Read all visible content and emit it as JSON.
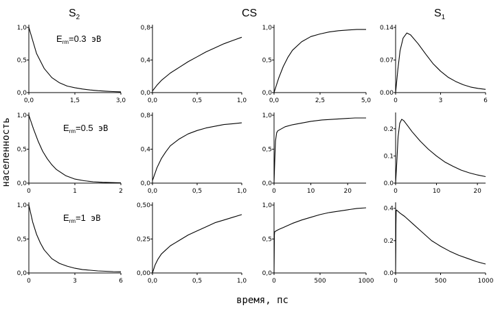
{
  "header": {
    "col_s2": "S",
    "col_s2_sub": "2",
    "col_cs": "CS",
    "col_s1": "S",
    "col_s1_sub": "1"
  },
  "row_labels": [
    {
      "prefix": "E",
      "sub": "rm",
      "value": "=0.3",
      "unit": " эВ"
    },
    {
      "prefix": "E",
      "sub": "rm",
      "value": "=0.5",
      "unit": " эВ"
    },
    {
      "prefix": "E",
      "sub": "rm",
      "value": "=1",
      "unit": " эВ"
    }
  ],
  "axes": {
    "xlabel": "время, пс",
    "ylabel": "населенность"
  },
  "chart_data": [
    {
      "type": "line",
      "row": 0,
      "col": 0,
      "xlim": [
        0,
        3.0
      ],
      "ylim": [
        0,
        1.0
      ],
      "xticks": [
        "0,0",
        "1,5",
        "3,0"
      ],
      "yticks": [
        "0,0",
        "0,5",
        "1,0"
      ],
      "x": [
        0,
        0.25,
        0.5,
        0.75,
        1.0,
        1.25,
        1.5,
        1.75,
        2.0,
        2.25,
        2.5,
        2.75,
        3.0
      ],
      "y": [
        1.0,
        0.6,
        0.37,
        0.23,
        0.15,
        0.1,
        0.075,
        0.055,
        0.04,
        0.03,
        0.022,
        0.016,
        0.012
      ]
    },
    {
      "type": "line",
      "row": 0,
      "col": 1,
      "xlim": [
        0,
        1.0
      ],
      "ylim": [
        0,
        0.8
      ],
      "xticks": [
        "0,0",
        "0,5",
        "1,0"
      ],
      "yticks": [
        "0,0",
        "0,4",
        "0,8"
      ],
      "x": [
        0,
        0.05,
        0.1,
        0.2,
        0.3,
        0.4,
        0.5,
        0.6,
        0.7,
        0.8,
        0.9,
        1.0
      ],
      "y": [
        0.02,
        0.09,
        0.15,
        0.24,
        0.31,
        0.38,
        0.44,
        0.5,
        0.55,
        0.6,
        0.64,
        0.68
      ]
    },
    {
      "type": "line",
      "row": 0,
      "col": 2,
      "xlim": [
        0,
        5.0
      ],
      "ylim": [
        0,
        1.0
      ],
      "xticks": [
        "0,0",
        "2,5",
        "5,0"
      ],
      "yticks": [
        "0,0",
        "0,5",
        "1,0"
      ],
      "x": [
        0,
        0.1,
        0.25,
        0.5,
        0.75,
        1.0,
        1.5,
        2.0,
        2.5,
        3.0,
        3.5,
        4.0,
        4.5,
        5.0
      ],
      "y": [
        0,
        0.09,
        0.22,
        0.4,
        0.54,
        0.65,
        0.78,
        0.86,
        0.9,
        0.93,
        0.95,
        0.96,
        0.97,
        0.97
      ]
    },
    {
      "type": "line",
      "row": 0,
      "col": 3,
      "xlim": [
        0,
        6
      ],
      "ylim": [
        0,
        0.14
      ],
      "xticks": [
        "0",
        "3",
        "6"
      ],
      "yticks": [
        "0.00",
        "0.07",
        "0.14"
      ],
      "x": [
        0,
        0.15,
        0.3,
        0.5,
        0.75,
        1.0,
        1.5,
        2.0,
        2.5,
        3.0,
        3.5,
        4.0,
        4.5,
        5.0,
        5.5,
        6.0
      ],
      "y": [
        0,
        0.05,
        0.09,
        0.117,
        0.128,
        0.124,
        0.105,
        0.083,
        0.062,
        0.046,
        0.033,
        0.024,
        0.017,
        0.012,
        0.009,
        0.007
      ]
    },
    {
      "type": "line",
      "row": 1,
      "col": 0,
      "xlim": [
        0,
        2
      ],
      "ylim": [
        0,
        1.0
      ],
      "xticks": [
        "0",
        "1",
        "2"
      ],
      "yticks": [
        "0,0",
        "0,5",
        "1,0"
      ],
      "x": [
        0,
        0.1,
        0.2,
        0.3,
        0.4,
        0.5,
        0.6,
        0.8,
        1.0,
        1.2,
        1.4,
        1.6,
        1.8,
        2.0
      ],
      "y": [
        1.0,
        0.8,
        0.62,
        0.47,
        0.36,
        0.27,
        0.2,
        0.11,
        0.06,
        0.035,
        0.02,
        0.012,
        0.008,
        0.005
      ]
    },
    {
      "type": "line",
      "row": 1,
      "col": 1,
      "xlim": [
        0,
        1.0
      ],
      "ylim": [
        0,
        0.8
      ],
      "xticks": [
        "0,0",
        "0,5",
        "1,0"
      ],
      "yticks": [
        "0,0",
        "0,4",
        "0,8"
      ],
      "x": [
        0,
        0.05,
        0.1,
        0.15,
        0.2,
        0.3,
        0.4,
        0.5,
        0.6,
        0.7,
        0.8,
        0.9,
        1.0
      ],
      "y": [
        0.03,
        0.18,
        0.29,
        0.37,
        0.44,
        0.52,
        0.58,
        0.62,
        0.65,
        0.67,
        0.69,
        0.7,
        0.71
      ]
    },
    {
      "type": "line",
      "row": 1,
      "col": 2,
      "xlim": [
        0,
        25
      ],
      "ylim": [
        0,
        1.0
      ],
      "xticks": [
        "0",
        "10",
        "20"
      ],
      "yticks": [
        "0,0",
        "0,5",
        "1,0"
      ],
      "x": [
        0,
        0.2,
        0.4,
        0.7,
        1.0,
        2,
        3,
        5,
        7,
        10,
        13,
        16,
        19,
        22,
        25
      ],
      "y": [
        0,
        0.35,
        0.62,
        0.74,
        0.77,
        0.8,
        0.83,
        0.86,
        0.88,
        0.91,
        0.93,
        0.94,
        0.95,
        0.96,
        0.96
      ]
    },
    {
      "type": "line",
      "row": 1,
      "col": 3,
      "xlim": [
        0,
        22
      ],
      "ylim": [
        0,
        0.25
      ],
      "xticks": [
        "0",
        "10",
        "20"
      ],
      "yticks": [
        "0.0",
        "0.1",
        "0.2"
      ],
      "x": [
        0,
        0.3,
        0.6,
        1.0,
        1.5,
        2,
        3,
        4,
        6,
        8,
        10,
        12,
        14,
        16,
        18,
        20,
        22
      ],
      "y": [
        0,
        0.08,
        0.17,
        0.22,
        0.235,
        0.23,
        0.21,
        0.19,
        0.155,
        0.125,
        0.1,
        0.078,
        0.062,
        0.048,
        0.038,
        0.03,
        0.024
      ]
    },
    {
      "type": "line",
      "row": 2,
      "col": 0,
      "xlim": [
        0,
        6
      ],
      "ylim": [
        0,
        1.0
      ],
      "xticks": [
        "0",
        "3",
        "6"
      ],
      "yticks": [
        "0,0",
        "0,5",
        "1,0"
      ],
      "x": [
        0,
        0.25,
        0.5,
        0.75,
        1.0,
        1.5,
        2.0,
        2.5,
        3.0,
        3.5,
        4.0,
        4.5,
        5.0,
        5.5,
        6.0
      ],
      "y": [
        1.0,
        0.75,
        0.57,
        0.44,
        0.34,
        0.21,
        0.14,
        0.1,
        0.07,
        0.05,
        0.04,
        0.03,
        0.025,
        0.02,
        0.018
      ]
    },
    {
      "type": "line",
      "row": 2,
      "col": 1,
      "xlim": [
        0,
        1.0
      ],
      "ylim": [
        0,
        0.5
      ],
      "xticks": [
        "0,0",
        "0,5",
        "1,0"
      ],
      "yticks": [
        "0,00",
        "0,25",
        "0,50"
      ],
      "x": [
        0,
        0.03,
        0.06,
        0.1,
        0.15,
        0.2,
        0.3,
        0.4,
        0.5,
        0.6,
        0.7,
        0.8,
        0.9,
        1.0
      ],
      "y": [
        0.0,
        0.06,
        0.1,
        0.14,
        0.17,
        0.2,
        0.24,
        0.28,
        0.31,
        0.34,
        0.37,
        0.39,
        0.41,
        0.43
      ]
    },
    {
      "type": "line",
      "row": 2,
      "col": 2,
      "xlim": [
        0,
        1000
      ],
      "ylim": [
        0,
        1.0
      ],
      "xticks": [
        "0",
        "500",
        "1000"
      ],
      "yticks": [
        "0,0",
        "0,5",
        "1,0"
      ],
      "x": [
        0,
        2,
        4,
        6,
        10,
        50,
        100,
        200,
        300,
        400,
        500,
        600,
        700,
        800,
        900,
        1000
      ],
      "y": [
        0,
        0.3,
        0.55,
        0.6,
        0.61,
        0.64,
        0.67,
        0.73,
        0.78,
        0.82,
        0.86,
        0.89,
        0.91,
        0.93,
        0.95,
        0.96
      ]
    },
    {
      "type": "line",
      "row": 2,
      "col": 3,
      "xlim": [
        0,
        1000
      ],
      "ylim": [
        0,
        0.42
      ],
      "xticks": [
        "0",
        "500",
        "1000"
      ],
      "yticks": [
        "0.0",
        "0.2",
        "0.4"
      ],
      "x": [
        0,
        2,
        4,
        6,
        10,
        50,
        100,
        200,
        300,
        400,
        500,
        600,
        700,
        800,
        900,
        1000
      ],
      "y": [
        0,
        0.15,
        0.3,
        0.38,
        0.39,
        0.37,
        0.35,
        0.3,
        0.25,
        0.2,
        0.165,
        0.135,
        0.11,
        0.09,
        0.07,
        0.055
      ]
    }
  ]
}
